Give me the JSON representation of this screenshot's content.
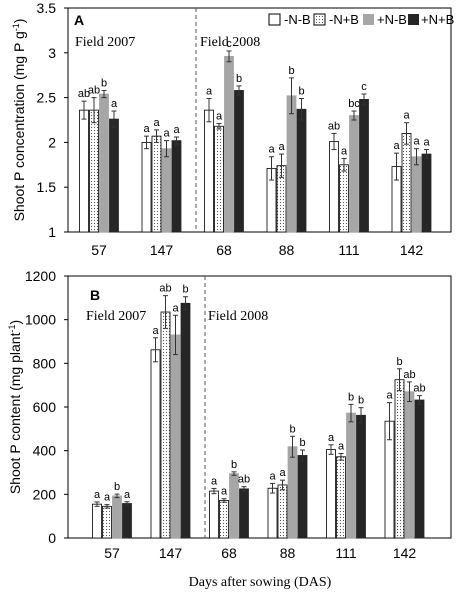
{
  "colors": {
    "neg_n_neg_b": "#ffffff",
    "neg_n_pos_b": "#ffffff",
    "pos_n_neg_b": "#a6a6a6",
    "pos_n_pos_b": "#262626",
    "frame": "#000000"
  },
  "chart_data": [
    {
      "type": "bar",
      "panel_letter": "A",
      "title": "",
      "xlabel": "",
      "ylabel": "Shoot P concentration (mg P g",
      "ylabel_sup": "-1",
      "ylabel_close": ")",
      "ylim": [
        1,
        3.5
      ],
      "yticks": [
        1,
        1.5,
        2,
        2.5,
        3,
        3.5
      ],
      "ytick_labels": [
        "1",
        "1.5",
        "2",
        "2.5",
        "3",
        "3.5"
      ],
      "categories": [
        "57",
        "147",
        "68",
        "88",
        "111",
        "142"
      ],
      "grid": false,
      "legend_position": "top-right",
      "annotations": [
        "Field 2007",
        "Field 2008"
      ],
      "series": [
        {
          "name": "-N-B",
          "values": [
            2.36,
            2.0,
            2.36,
            1.71,
            2.01,
            1.73
          ],
          "err": [
            0.1,
            0.07,
            0.13,
            0.13,
            0.09,
            0.15
          ],
          "letters": [
            "ab",
            "a",
            "a",
            "a",
            "ab",
            "a"
          ]
        },
        {
          "name": "-N+B",
          "values": [
            2.36,
            2.07,
            2.18,
            1.74,
            1.75,
            2.1
          ],
          "err": [
            0.14,
            0.07,
            0.03,
            0.13,
            0.07,
            0.12
          ],
          "letters": [
            "ab",
            "a",
            "a",
            "a",
            "a",
            "a"
          ]
        },
        {
          "name": "+N-B",
          "values": [
            2.54,
            1.93,
            2.96,
            2.52,
            2.3,
            1.84
          ],
          "err": [
            0.04,
            0.09,
            0.06,
            0.2,
            0.05,
            0.09
          ],
          "letters": [
            "b",
            "a",
            "c",
            "b",
            "bc",
            "a"
          ]
        },
        {
          "name": "+N+B",
          "values": [
            2.26,
            2.02,
            2.58,
            2.37,
            2.48,
            1.87
          ],
          "err": [
            0.09,
            0.04,
            0.05,
            0.12,
            0.06,
            0.05
          ],
          "letters": [
            "a",
            "a",
            "b",
            "b",
            "c",
            "a"
          ]
        }
      ]
    },
    {
      "type": "bar",
      "panel_letter": "B",
      "title": "",
      "xlabel": "Days after sowing (DAS)",
      "ylabel": "Shoot P content (mg plant",
      "ylabel_sup": "-1",
      "ylabel_close": ")",
      "ylim": [
        0,
        1200
      ],
      "yticks": [
        0,
        200,
        400,
        600,
        800,
        1000,
        1200
      ],
      "ytick_labels": [
        "0",
        "200",
        "400",
        "600",
        "800",
        "1000",
        "1200"
      ],
      "categories": [
        "57",
        "147",
        "68",
        "88",
        "111",
        "142"
      ],
      "grid": false,
      "legend_position": "",
      "annotations": [
        "Field 2007",
        "Field 2008"
      ],
      "series": [
        {
          "name": "-N-B",
          "values": [
            155,
            862,
            215,
            228,
            405,
            535
          ],
          "err": [
            10,
            55,
            12,
            22,
            22,
            85
          ],
          "letters": [
            "a",
            "a",
            "a",
            "a",
            "a",
            "a"
          ]
        },
        {
          "name": "-N+B",
          "values": [
            145,
            1035,
            172,
            243,
            372,
            725
          ],
          "err": [
            8,
            75,
            8,
            22,
            15,
            50
          ],
          "letters": [
            "a",
            "ab",
            "a",
            "a",
            "a",
            "b"
          ]
        },
        {
          "name": "+N-B",
          "values": [
            193,
            930,
            295,
            418,
            572,
            670
          ],
          "err": [
            8,
            90,
            8,
            48,
            40,
            45
          ],
          "letters": [
            "b",
            "a",
            "b",
            "b",
            "b",
            "ab"
          ]
        },
        {
          "name": "+N+B",
          "values": [
            158,
            1075,
            225,
            378,
            562,
            632
          ],
          "err": [
            8,
            30,
            10,
            25,
            35,
            20
          ],
          "letters": [
            "a",
            "b",
            "ab",
            "b",
            "b",
            "ab"
          ]
        }
      ]
    }
  ]
}
